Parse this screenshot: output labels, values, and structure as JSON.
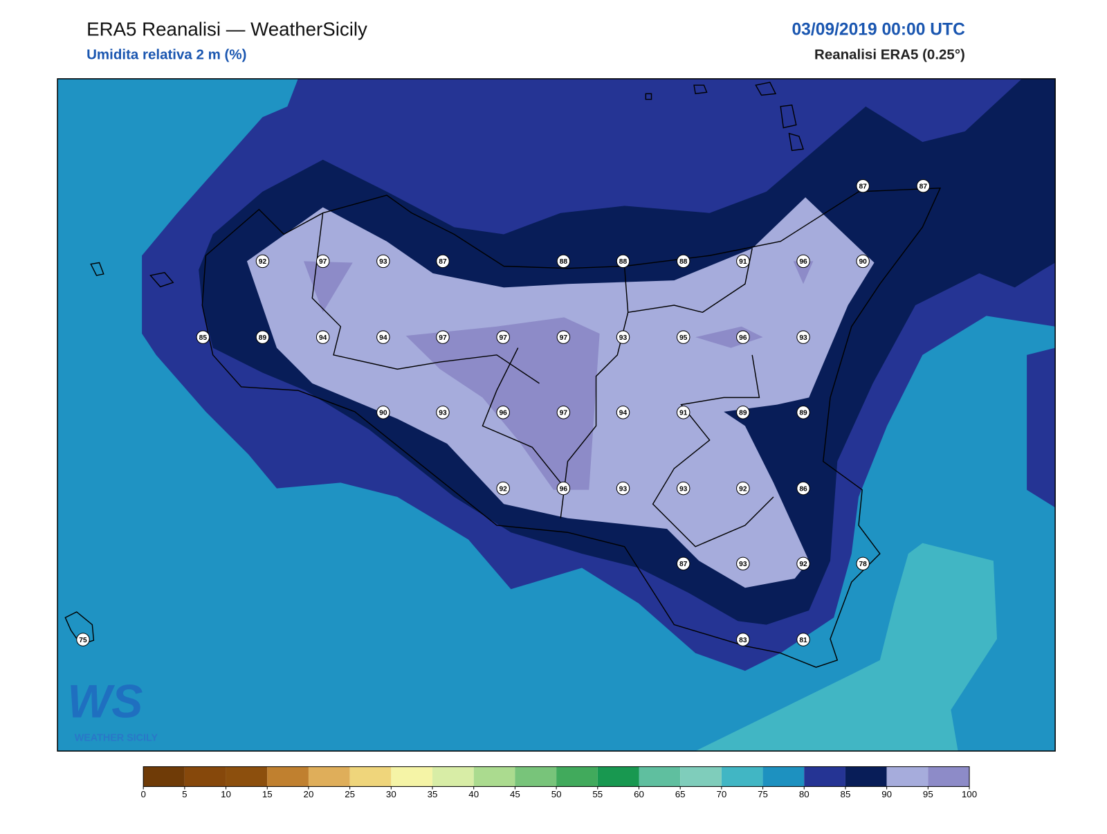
{
  "header": {
    "title": "ERA5 Reanalisi — WeatherSicily",
    "subtitle": "Umidita relativa 2 m (%)",
    "date": "03/09/2019 00:00 UTC",
    "source": "Reanalisi ERA5 (0.25°)"
  },
  "stations": [
    87,
    87,
    92,
    97,
    93,
    87,
    88,
    88,
    88,
    91,
    96,
    90,
    85,
    89,
    94,
    94,
    97,
    97,
    97,
    93,
    95,
    96,
    93,
    90,
    93,
    96,
    97,
    94,
    91,
    89,
    89,
    92,
    96,
    93,
    93,
    92,
    86,
    87,
    93,
    92,
    78,
    75,
    83,
    81
  ],
  "colorbar": {
    "ticks": [
      0,
      5,
      10,
      15,
      20,
      25,
      30,
      35,
      40,
      45,
      50,
      55,
      60,
      65,
      70,
      75,
      80,
      85,
      90,
      95,
      100
    ],
    "colors": [
      "#6f3b07",
      "#86480b",
      "#8c4f0d",
      "#c0802f",
      "#dfae5a",
      "#efd57b",
      "#f5f4a6",
      "#d8eda6",
      "#abdb8f",
      "#78c47a",
      "#41aa5c",
      "#189850",
      "#5fbf9f",
      "#7fcdbb",
      "#41b6c4",
      "#1d91c0",
      "#253494",
      "#081d58",
      "#a6acdc",
      "#8d8bc8"
    ]
  },
  "logo": {
    "mark": "WS",
    "name": "WEATHER SICILY"
  }
}
